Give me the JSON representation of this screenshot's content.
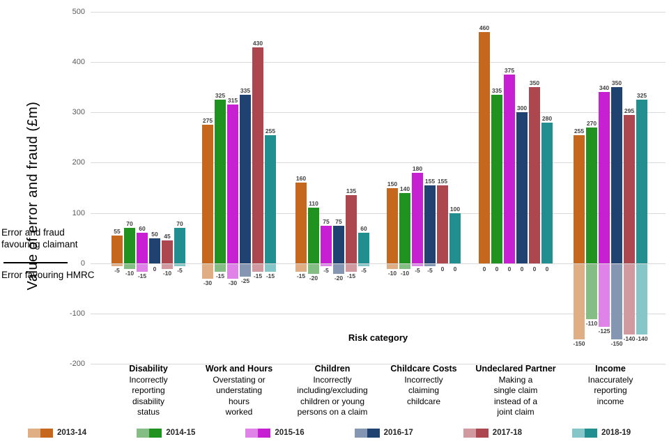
{
  "chart_data": {
    "type": "bar",
    "title": "",
    "ylabel": "Value of error and fraud (£m)",
    "xlabel": "Risk category",
    "ylim": [
      -200,
      500
    ],
    "yticks": [
      500,
      400,
      300,
      200,
      100,
      0,
      -100,
      -200
    ],
    "grid": true,
    "legend_position": "bottom",
    "annotations": {
      "above_zero": "Error and fraud favouring claimant",
      "below_zero": "Error favouring HMRC"
    },
    "categories": [
      {
        "title": "Disability",
        "description": [
          "Incorrectly",
          "reporting",
          "disability",
          "status"
        ]
      },
      {
        "title": "Work and Hours",
        "description": [
          "Overstating or",
          "understating",
          "hours",
          "worked"
        ]
      },
      {
        "title": "Children",
        "description": [
          "Incorrectly",
          "including/excluding",
          "children or young",
          "persons on a claim"
        ]
      },
      {
        "title": "Childcare Costs",
        "description": [
          "Incorrectly",
          "claiming",
          "childcare"
        ]
      },
      {
        "title": "Undeclared Partner",
        "description": [
          "Making a",
          "single claim",
          "instead of a",
          "joint claim"
        ]
      },
      {
        "title": "Income",
        "description": [
          "Inaccurately",
          "reporting",
          "income"
        ]
      }
    ],
    "series": [
      {
        "name": "2013-14",
        "color": "#c5671d",
        "light_color": "#e0ae84",
        "favouring_claimant": [
          55,
          275,
          160,
          150,
          460,
          255
        ],
        "favouring_hmrc": [
          -5,
          -30,
          -15,
          -10,
          0,
          -150
        ]
      },
      {
        "name": "2014-15",
        "color": "#1f921f",
        "light_color": "#85be85",
        "favouring_claimant": [
          70,
          325,
          110,
          140,
          335,
          270
        ],
        "favouring_hmrc": [
          -10,
          -15,
          -20,
          -10,
          0,
          -110
        ]
      },
      {
        "name": "2015-16",
        "color": "#c720d2",
        "light_color": "#e083e8",
        "favouring_claimant": [
          60,
          315,
          75,
          180,
          375,
          340
        ],
        "favouring_hmrc": [
          -15,
          -30,
          -5,
          -5,
          0,
          -125
        ]
      },
      {
        "name": "2016-17",
        "color": "#1f4271",
        "light_color": "#8496b2",
        "favouring_claimant": [
          50,
          335,
          75,
          155,
          300,
          350
        ],
        "favouring_hmrc": [
          0,
          -25,
          -20,
          -5,
          0,
          -150
        ]
      },
      {
        "name": "2017-18",
        "color": "#ac4750",
        "light_color": "#d09aa0",
        "favouring_claimant": [
          45,
          430,
          135,
          155,
          350,
          295
        ],
        "favouring_hmrc": [
          -10,
          -15,
          -15,
          0,
          0,
          -140
        ]
      },
      {
        "name": "2018-19",
        "color": "#218f90",
        "light_color": "#85c6c8",
        "favouring_claimant": [
          70,
          255,
          60,
          100,
          280,
          325
        ],
        "favouring_hmrc": [
          -5,
          -15,
          -5,
          0,
          0,
          -140
        ]
      }
    ]
  }
}
